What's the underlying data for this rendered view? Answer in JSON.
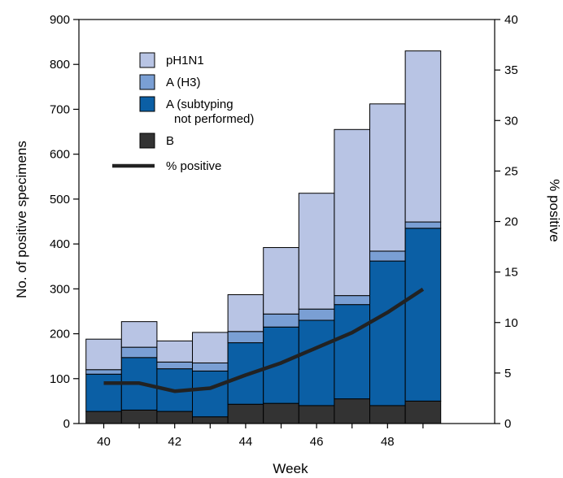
{
  "chart_data": {
    "type": "bar",
    "stacked": true,
    "x": [
      40,
      41,
      42,
      43,
      44,
      45,
      46,
      47,
      48,
      49
    ],
    "x_ticks": [
      "40",
      "42",
      "44",
      "46",
      "48"
    ],
    "xlabel": "Week",
    "ylabel": "No. of positive specimens",
    "ylabel_right": "% positive",
    "ylim": [
      0,
      900
    ],
    "y_ticks": [
      "0",
      "100",
      "200",
      "300",
      "400",
      "500",
      "600",
      "700",
      "800",
      "900"
    ],
    "ylim_right": [
      0,
      40
    ],
    "y_ticks_right": [
      "0",
      "5",
      "10",
      "15",
      "20",
      "25",
      "30",
      "35",
      "40"
    ],
    "grid": false,
    "legend_position": "top-left",
    "series": [
      {
        "name": "B",
        "color": "#333333",
        "values": [
          27,
          30,
          27,
          15,
          43,
          45,
          40,
          55,
          40,
          50
        ]
      },
      {
        "name": "A (subtyping not performed)",
        "color": "#0b5fa5",
        "values": [
          83,
          117,
          95,
          102,
          137,
          170,
          190,
          210,
          322,
          385
        ]
      },
      {
        "name": "A (H3)",
        "color": "#7a9fd4",
        "values": [
          10,
          23,
          15,
          18,
          25,
          29,
          25,
          20,
          22,
          14
        ]
      },
      {
        "name": "pH1N1",
        "color": "#b8c4e4",
        "values": [
          68,
          57,
          47,
          68,
          82,
          148,
          258,
          370,
          328,
          381
        ]
      }
    ],
    "legend": [
      {
        "label_lines": [
          "pH1N1"
        ],
        "color": "#b8c4e4",
        "kind": "box"
      },
      {
        "label_lines": [
          "A (H3)"
        ],
        "color": "#7a9fd4",
        "kind": "box"
      },
      {
        "label_lines": [
          "A (subtyping",
          "not performed)"
        ],
        "color": "#0b5fa5",
        "kind": "box"
      },
      {
        "label_lines": [
          "B"
        ],
        "color": "#333333",
        "kind": "box"
      },
      {
        "label_lines": [
          "% positive"
        ],
        "color": "#222222",
        "kind": "line"
      }
    ],
    "line_series": {
      "name": "% positive",
      "color": "#222222",
      "values": [
        4.0,
        4.0,
        3.2,
        3.5,
        4.8,
        6.0,
        7.5,
        9.0,
        11.0,
        13.3
      ]
    }
  }
}
